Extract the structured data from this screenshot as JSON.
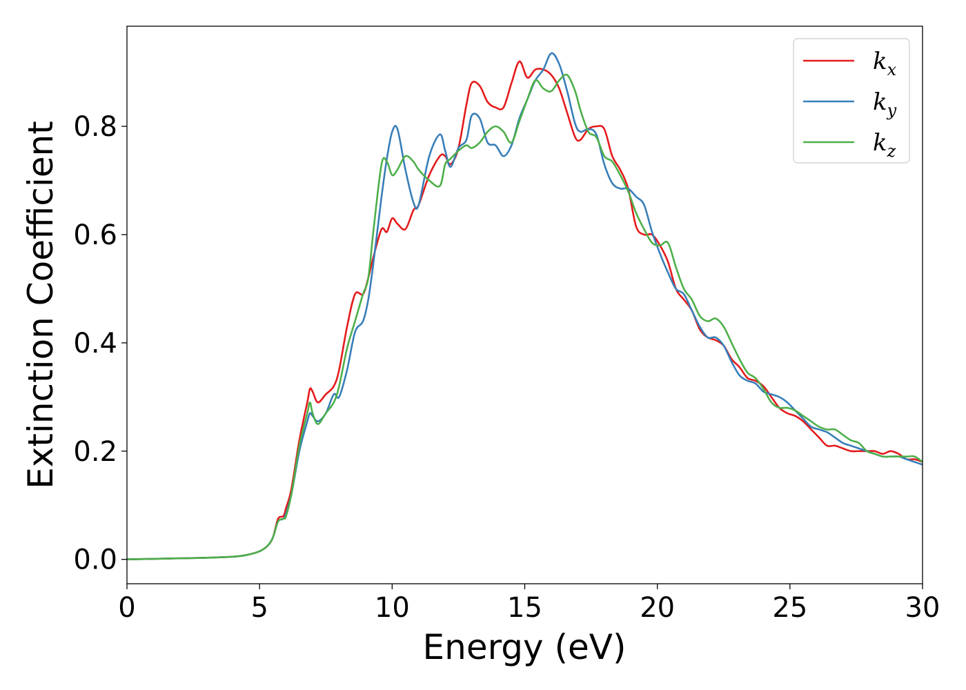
{
  "chart_data": {
    "type": "line",
    "title": "",
    "xlabel": "Energy (eV)",
    "ylabel": "Extinction Coefficient",
    "xlim": [
      0,
      30
    ],
    "ylim": [
      -0.045,
      0.985
    ],
    "xticks": [
      0,
      5,
      10,
      15,
      20,
      25,
      30
    ],
    "yticks": [
      0.0,
      0.2,
      0.4,
      0.6,
      0.8
    ],
    "xtick_labels": [
      "0",
      "5",
      "10",
      "15",
      "20",
      "25",
      "30"
    ],
    "ytick_labels": [
      "0.0",
      "0.2",
      "0.4",
      "0.6",
      "0.8"
    ],
    "grid": false,
    "legend_position": "top-right",
    "series": [
      {
        "name": "k_x",
        "label_main": "k",
        "label_sub": "x",
        "color": "#e41a1c",
        "x": [
          0,
          1,
          2,
          3,
          4,
          4.5,
          5,
          5.3,
          5.5,
          5.7,
          5.9,
          6.0,
          6.2,
          6.5,
          6.8,
          6.9,
          7.0,
          7.2,
          7.5,
          7.8,
          8.0,
          8.3,
          8.6,
          8.9,
          9.1,
          9.3,
          9.6,
          9.8,
          10.0,
          10.2,
          10.5,
          10.8,
          11.0,
          11.4,
          11.8,
          12.0,
          12.2,
          12.5,
          12.8,
          13.0,
          13.3,
          13.6,
          13.9,
          14.2,
          14.5,
          14.8,
          15.1,
          15.4,
          15.7,
          16.0,
          16.3,
          16.6,
          16.9,
          17.1,
          17.4,
          17.7,
          18.0,
          18.3,
          18.6,
          18.9,
          19.2,
          19.5,
          19.8,
          20.1,
          20.4,
          20.7,
          21.0,
          21.3,
          21.6,
          21.9,
          22.2,
          22.5,
          22.8,
          23.1,
          23.4,
          23.7,
          24.0,
          24.3,
          24.6,
          24.9,
          25.2,
          25.5,
          25.8,
          26.1,
          26.4,
          26.7,
          27.0,
          27.3,
          27.6,
          27.9,
          28.2,
          28.5,
          28.8,
          29.1,
          29.4,
          29.7,
          30.0
        ],
        "y": [
          0.0,
          0.001,
          0.002,
          0.003,
          0.005,
          0.008,
          0.015,
          0.025,
          0.04,
          0.075,
          0.08,
          0.095,
          0.13,
          0.22,
          0.29,
          0.315,
          0.31,
          0.29,
          0.305,
          0.32,
          0.35,
          0.43,
          0.49,
          0.49,
          0.52,
          0.56,
          0.61,
          0.605,
          0.63,
          0.62,
          0.61,
          0.645,
          0.655,
          0.71,
          0.745,
          0.745,
          0.73,
          0.76,
          0.84,
          0.88,
          0.875,
          0.845,
          0.835,
          0.835,
          0.88,
          0.92,
          0.89,
          0.905,
          0.905,
          0.895,
          0.87,
          0.825,
          0.78,
          0.775,
          0.795,
          0.8,
          0.795,
          0.745,
          0.72,
          0.685,
          0.615,
          0.6,
          0.6,
          0.58,
          0.55,
          0.5,
          0.48,
          0.46,
          0.425,
          0.41,
          0.405,
          0.395,
          0.37,
          0.355,
          0.335,
          0.33,
          0.32,
          0.3,
          0.28,
          0.27,
          0.265,
          0.255,
          0.24,
          0.225,
          0.21,
          0.21,
          0.205,
          0.2,
          0.2,
          0.2,
          0.2,
          0.195,
          0.2,
          0.195,
          0.185,
          0.185,
          0.18
        ]
      },
      {
        "name": "k_y",
        "label_main": "k",
        "label_sub": "y",
        "color": "#377eb8",
        "x": [
          0,
          1,
          2,
          3,
          4,
          4.5,
          5,
          5.3,
          5.5,
          5.7,
          5.9,
          6.0,
          6.2,
          6.5,
          6.8,
          6.9,
          7.0,
          7.2,
          7.5,
          7.8,
          8.0,
          8.3,
          8.6,
          8.9,
          9.1,
          9.3,
          9.6,
          9.8,
          10.0,
          10.2,
          10.5,
          10.8,
          11.0,
          11.4,
          11.8,
          12.0,
          12.2,
          12.5,
          12.8,
          13.0,
          13.3,
          13.6,
          13.9,
          14.2,
          14.5,
          14.8,
          15.1,
          15.4,
          15.7,
          16.0,
          16.3,
          16.6,
          16.9,
          17.1,
          17.4,
          17.7,
          18.0,
          18.3,
          18.6,
          18.9,
          19.2,
          19.5,
          19.8,
          20.1,
          20.4,
          20.7,
          21.0,
          21.3,
          21.6,
          21.9,
          22.2,
          22.5,
          22.8,
          23.1,
          23.4,
          23.7,
          24.0,
          24.3,
          24.6,
          24.9,
          25.2,
          25.5,
          25.8,
          26.1,
          26.4,
          26.7,
          27.0,
          27.3,
          27.6,
          27.9,
          28.2,
          28.5,
          28.8,
          29.1,
          29.4,
          29.7,
          30.0
        ],
        "y": [
          0.0,
          0.001,
          0.002,
          0.003,
          0.005,
          0.008,
          0.015,
          0.025,
          0.04,
          0.07,
          0.075,
          0.085,
          0.12,
          0.2,
          0.255,
          0.27,
          0.265,
          0.255,
          0.27,
          0.305,
          0.3,
          0.35,
          0.42,
          0.44,
          0.48,
          0.55,
          0.67,
          0.74,
          0.79,
          0.795,
          0.72,
          0.66,
          0.655,
          0.745,
          0.785,
          0.755,
          0.725,
          0.76,
          0.775,
          0.82,
          0.815,
          0.77,
          0.765,
          0.745,
          0.765,
          0.815,
          0.85,
          0.885,
          0.905,
          0.935,
          0.915,
          0.865,
          0.805,
          0.79,
          0.795,
          0.785,
          0.73,
          0.695,
          0.685,
          0.685,
          0.67,
          0.655,
          0.605,
          0.565,
          0.53,
          0.5,
          0.49,
          0.46,
          0.43,
          0.41,
          0.41,
          0.395,
          0.365,
          0.34,
          0.33,
          0.325,
          0.31,
          0.305,
          0.3,
          0.29,
          0.275,
          0.26,
          0.245,
          0.24,
          0.235,
          0.225,
          0.215,
          0.21,
          0.205,
          0.2,
          0.195,
          0.19,
          0.19,
          0.19,
          0.185,
          0.18,
          0.175
        ]
      },
      {
        "name": "k_z",
        "label_main": "k",
        "label_sub": "z",
        "color": "#4daf4a",
        "x": [
          0,
          1,
          2,
          3,
          4,
          4.5,
          5,
          5.3,
          5.5,
          5.7,
          5.9,
          6.0,
          6.2,
          6.5,
          6.8,
          6.9,
          7.0,
          7.2,
          7.5,
          7.8,
          8.0,
          8.3,
          8.6,
          8.9,
          9.1,
          9.3,
          9.6,
          9.8,
          10.0,
          10.2,
          10.5,
          10.8,
          11.0,
          11.4,
          11.8,
          12.0,
          12.2,
          12.5,
          12.8,
          13.0,
          13.3,
          13.6,
          13.9,
          14.2,
          14.5,
          14.8,
          15.1,
          15.4,
          15.7,
          16.0,
          16.3,
          16.6,
          16.9,
          17.1,
          17.4,
          17.7,
          18.0,
          18.3,
          18.6,
          18.9,
          19.2,
          19.5,
          19.8,
          20.1,
          20.4,
          20.7,
          21.0,
          21.3,
          21.6,
          21.9,
          22.2,
          22.5,
          22.8,
          23.1,
          23.4,
          23.7,
          24.0,
          24.3,
          24.6,
          24.9,
          25.2,
          25.5,
          25.8,
          26.1,
          26.4,
          26.7,
          27.0,
          27.3,
          27.6,
          27.9,
          28.2,
          28.5,
          28.8,
          29.1,
          29.4,
          29.7,
          30.0
        ],
        "y": [
          0.0,
          0.001,
          0.002,
          0.003,
          0.005,
          0.008,
          0.015,
          0.025,
          0.04,
          0.07,
          0.075,
          0.08,
          0.12,
          0.21,
          0.27,
          0.29,
          0.27,
          0.25,
          0.27,
          0.29,
          0.32,
          0.39,
          0.44,
          0.49,
          0.52,
          0.61,
          0.73,
          0.735,
          0.71,
          0.72,
          0.745,
          0.735,
          0.72,
          0.7,
          0.69,
          0.73,
          0.74,
          0.755,
          0.765,
          0.76,
          0.77,
          0.79,
          0.8,
          0.79,
          0.77,
          0.81,
          0.85,
          0.885,
          0.87,
          0.865,
          0.885,
          0.895,
          0.865,
          0.83,
          0.79,
          0.78,
          0.745,
          0.735,
          0.71,
          0.68,
          0.64,
          0.61,
          0.585,
          0.58,
          0.585,
          0.54,
          0.5,
          0.48,
          0.45,
          0.44,
          0.445,
          0.43,
          0.4,
          0.37,
          0.345,
          0.335,
          0.315,
          0.29,
          0.28,
          0.28,
          0.275,
          0.265,
          0.255,
          0.245,
          0.24,
          0.24,
          0.23,
          0.22,
          0.215,
          0.2,
          0.195,
          0.19,
          0.19,
          0.19,
          0.19,
          0.19,
          0.18
        ]
      }
    ]
  }
}
